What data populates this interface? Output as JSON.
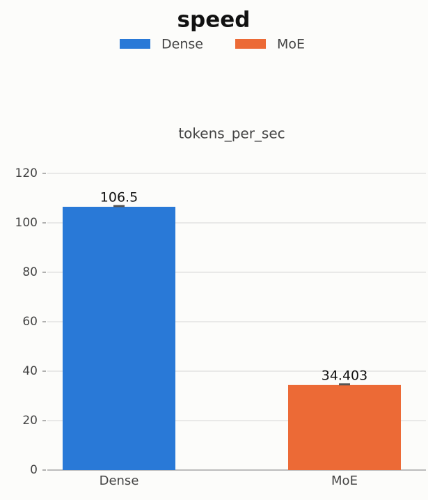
{
  "chart_data": {
    "type": "bar",
    "title": "speed",
    "subtitle": "tokens_per_sec",
    "categories": [
      "Dense",
      "MoE"
    ],
    "series": [
      {
        "name": "Dense",
        "color": "#2979d7"
      },
      {
        "name": "MoE",
        "color": "#ec6a36"
      }
    ],
    "values": [
      106.5,
      34.403
    ],
    "ylim": [
      0,
      120
    ],
    "yticks": [
      0,
      20,
      40,
      60,
      80,
      100,
      120
    ],
    "grid": true
  }
}
